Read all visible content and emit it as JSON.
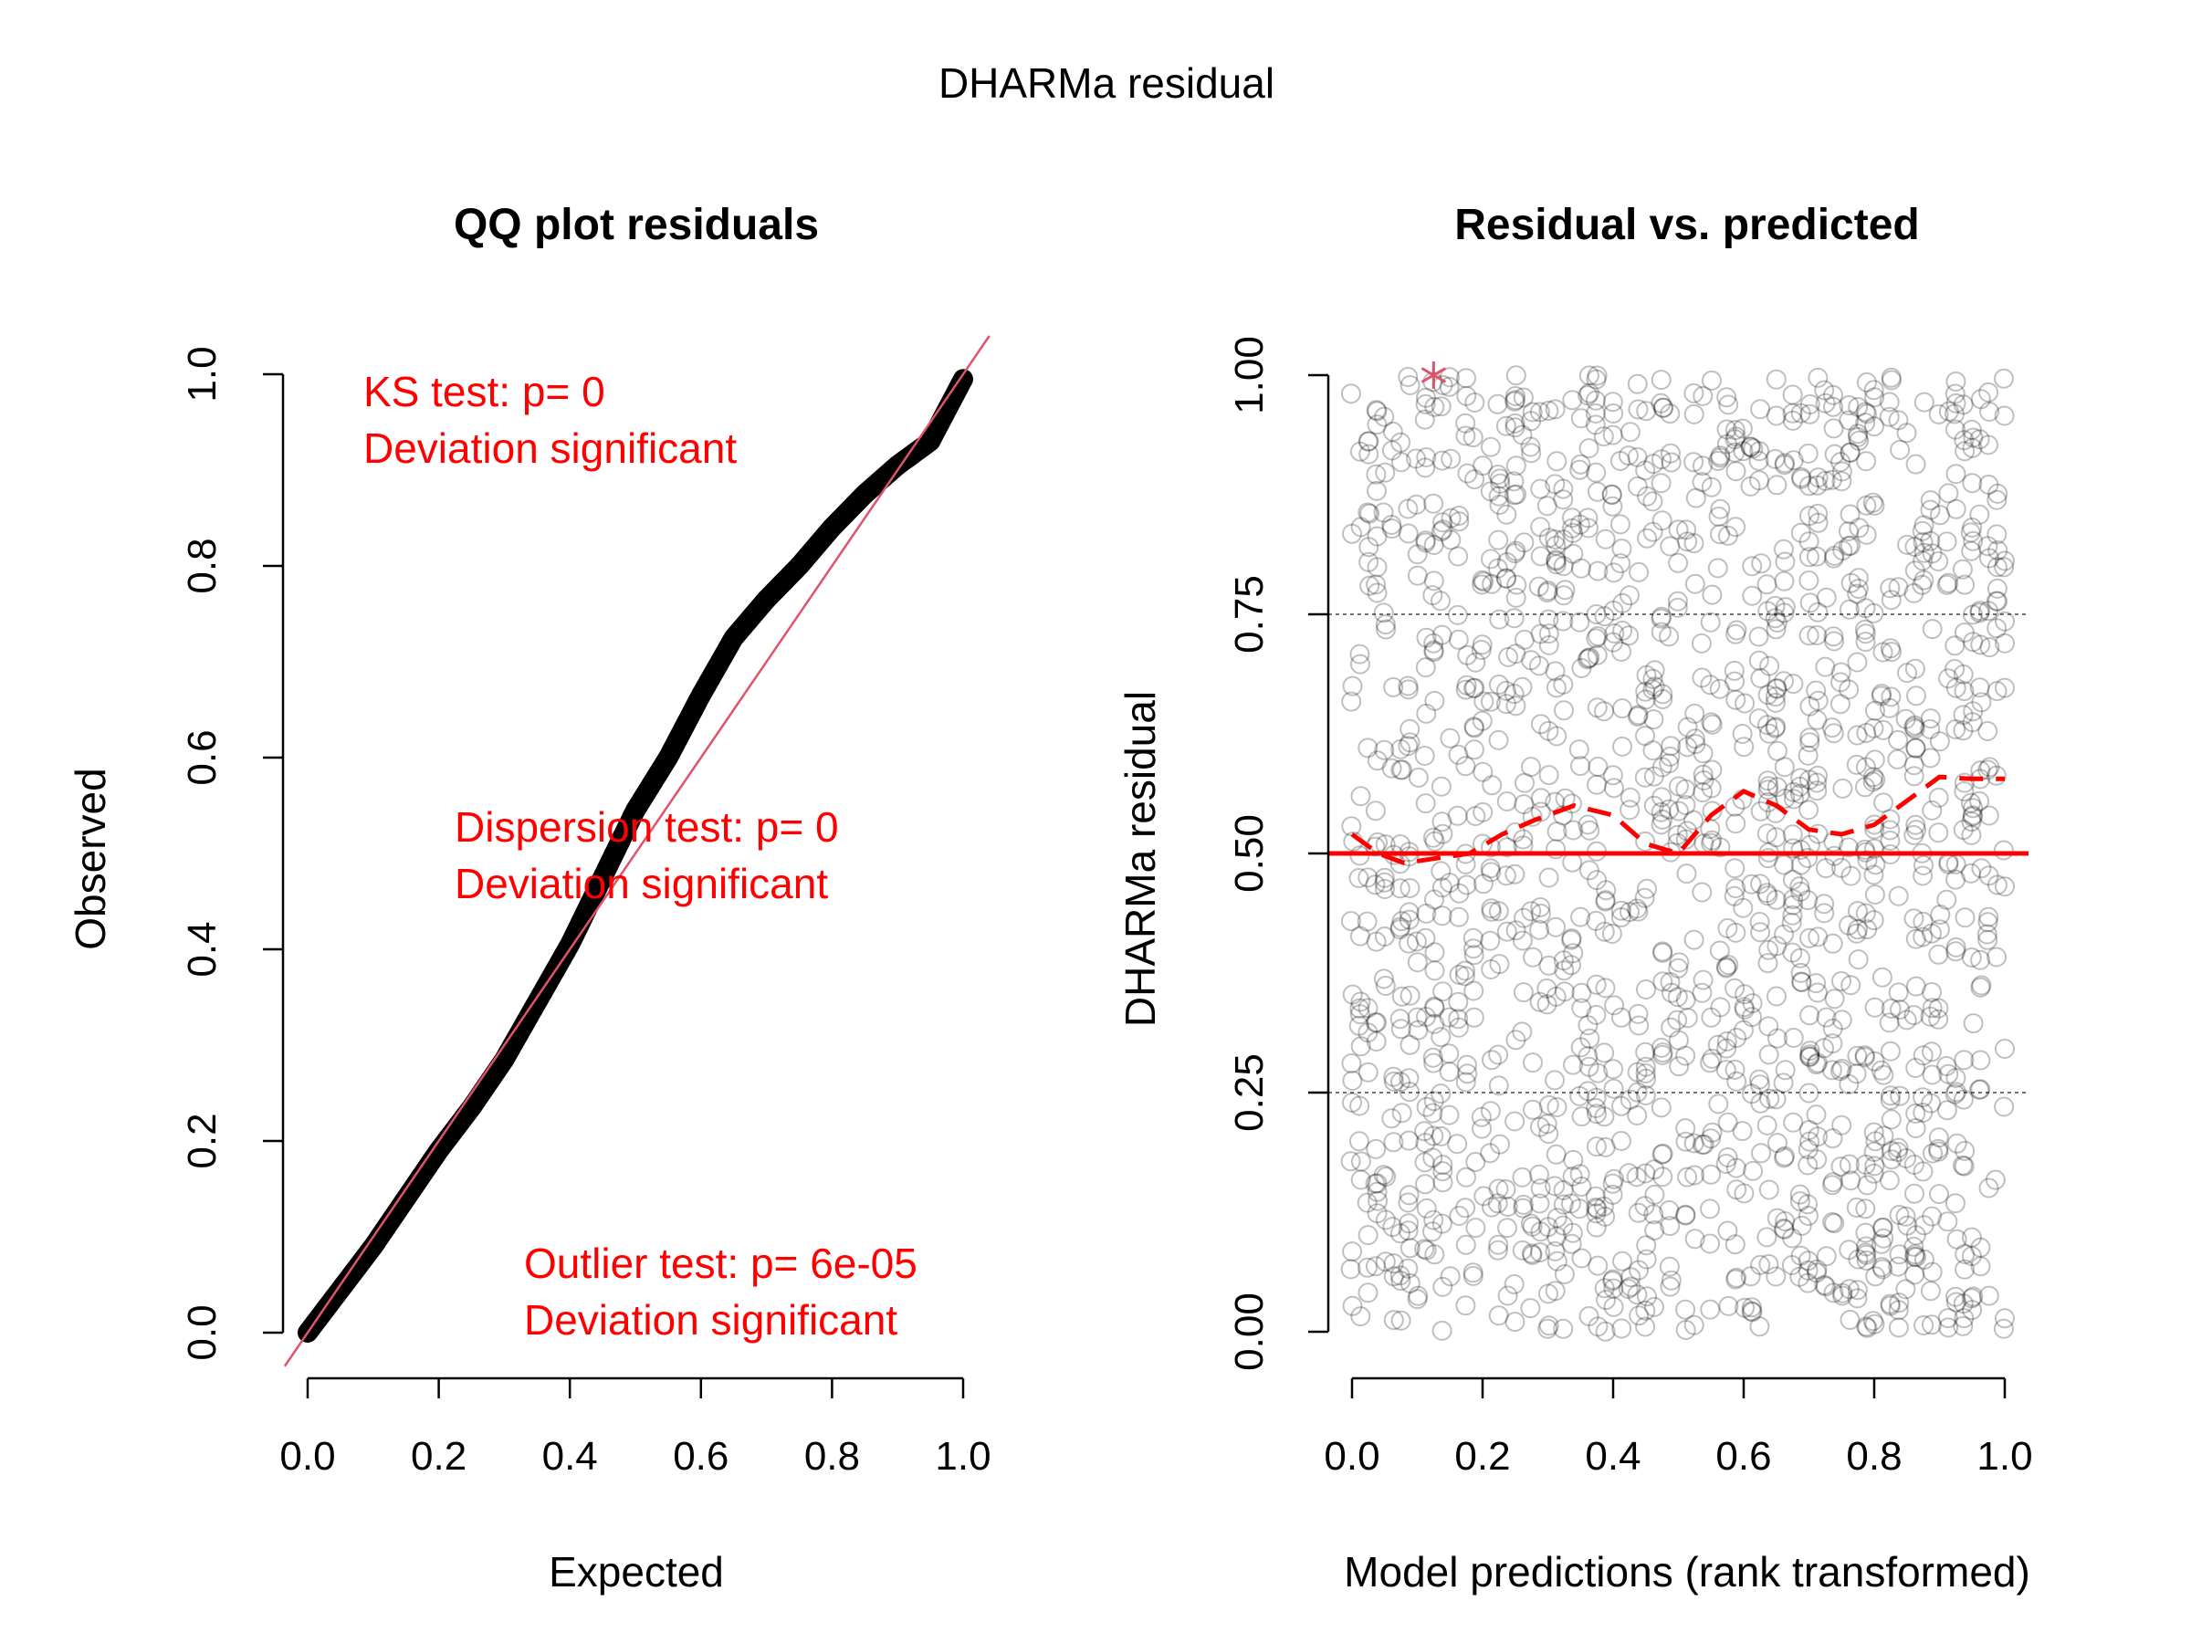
{
  "title": "DHARMa residual",
  "colors": {
    "reference_line": "#df536b",
    "annotation": "#ff0000",
    "outlier": "#df536b",
    "qq_points": "#000000",
    "scatter_points": "rgba(0,0,0,0.25)",
    "quantile_gridline": "#444444"
  },
  "chart_data": [
    {
      "type": "scatter",
      "title": "QQ plot residuals",
      "xlabel": "Expected",
      "ylabel": "Observed",
      "xlim": [
        0,
        1
      ],
      "ylim": [
        0,
        1
      ],
      "xticks": [
        "0.0",
        "0.2",
        "0.4",
        "0.6",
        "0.8",
        "1.0"
      ],
      "yticks": [
        "0.0",
        "0.2",
        "0.4",
        "0.6",
        "0.8",
        "1.0"
      ],
      "reference_line": {
        "intercept": 0,
        "slope": 1
      },
      "series": [
        {
          "x": [
            0.0,
            0.05,
            0.1,
            0.15,
            0.2,
            0.25,
            0.3,
            0.35,
            0.4,
            0.45,
            0.5,
            0.55,
            0.6,
            0.65,
            0.7,
            0.75,
            0.8,
            0.85,
            0.9,
            0.95,
            1.0
          ],
          "y": [
            0.0,
            0.045,
            0.09,
            0.14,
            0.19,
            0.235,
            0.285,
            0.345,
            0.405,
            0.475,
            0.545,
            0.6,
            0.665,
            0.725,
            0.765,
            0.8,
            0.84,
            0.875,
            0.905,
            0.93,
            0.995
          ]
        }
      ],
      "annotations": [
        {
          "lines": [
            "KS test: p= 0",
            "Deviation  significant"
          ]
        },
        {
          "lines": [
            "Dispersion test: p= 0",
            "Deviation  significant"
          ]
        },
        {
          "lines": [
            "Outlier test: p= 6e-05",
            "Deviation  significant"
          ]
        }
      ]
    },
    {
      "type": "scatter",
      "title": "Residual vs. predicted",
      "xlabel": "Model predictions (rank transformed)",
      "ylabel": "DHARMa residual",
      "xlim": [
        0,
        1
      ],
      "ylim": [
        0,
        1
      ],
      "xticks": [
        "0.0",
        "0.2",
        "0.4",
        "0.6",
        "0.8",
        "1.0"
      ],
      "yticks": [
        "0.00",
        "0.25",
        "0.50",
        "0.75",
        "1.00"
      ],
      "quantile_lines": [
        0.25,
        0.5,
        0.75
      ],
      "outlier_points": [
        {
          "x": 0.125,
          "y": 1.0
        }
      ],
      "quantile_fits": [
        {
          "quantile": 0.5,
          "x": [
            0.0,
            0.04,
            0.08,
            0.13,
            0.18,
            0.23,
            0.28,
            0.34,
            0.4,
            0.45,
            0.5,
            0.55,
            0.6,
            0.65,
            0.7,
            0.75,
            0.8,
            0.85,
            0.9,
            0.95,
            1.0
          ],
          "y": [
            0.52,
            0.5,
            0.49,
            0.495,
            0.5,
            0.52,
            0.535,
            0.55,
            0.54,
            0.51,
            0.5,
            0.54,
            0.565,
            0.55,
            0.525,
            0.52,
            0.53,
            0.555,
            0.58,
            0.578,
            0.578
          ]
        }
      ],
      "n_points": 1600
    }
  ]
}
